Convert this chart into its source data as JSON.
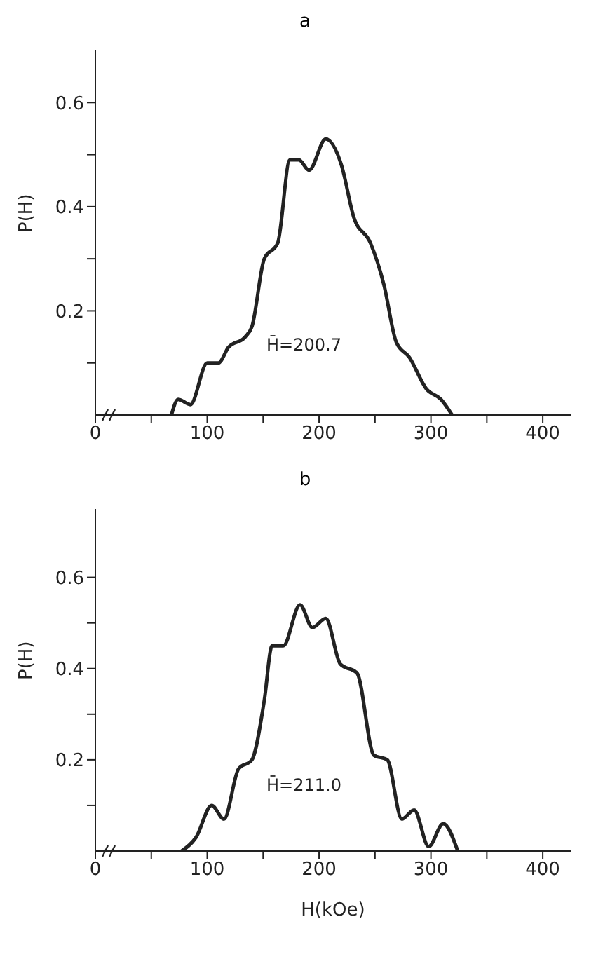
{
  "chart_data": [
    {
      "type": "line",
      "title": "a",
      "ylabel": "P(H)",
      "annotations": [
        "H̄=200.7"
      ],
      "xlim": [
        0,
        425
      ],
      "ylim": [
        0,
        0.7
      ],
      "xticks": [
        0,
        {
          "value": 50,
          "label": null
        },
        100,
        {
          "value": 150,
          "label": null
        },
        200,
        {
          "value": 250,
          "label": null
        },
        300,
        {
          "value": 350,
          "label": null
        },
        400
      ],
      "yticks": [
        {
          "value": 0.1,
          "label": null
        },
        0.2,
        {
          "value": 0.3,
          "label": null
        },
        0.4,
        {
          "value": 0.5,
          "label": null
        },
        0.6
      ],
      "series": [
        {
          "color": "#222222",
          "x": [
            68,
            74,
            85,
            100,
            110,
            119,
            134,
            140,
            151,
            163,
            174,
            182,
            191,
            206,
            220,
            231,
            246,
            258,
            269,
            281,
            296,
            309,
            319
          ],
          "values": [
            0,
            0.03,
            0.02,
            0.1,
            0.1,
            0.13,
            0.15,
            0.17,
            0.3,
            0.33,
            0.49,
            0.49,
            0.47,
            0.53,
            0.48,
            0.38,
            0.33,
            0.25,
            0.14,
            0.11,
            0.05,
            0.03,
            0
          ]
        }
      ]
    },
    {
      "type": "line",
      "title": "b",
      "xlabel": "H(kOe)",
      "ylabel": "P(H)",
      "annotations": [
        "H̄=211.0"
      ],
      "xlim": [
        0,
        425
      ],
      "ylim": [
        0,
        0.75
      ],
      "xticks": [
        0,
        {
          "value": 50,
          "label": null
        },
        100,
        {
          "value": 150,
          "label": null
        },
        200,
        {
          "value": 250,
          "label": null
        },
        300,
        {
          "value": 350,
          "label": null
        },
        400
      ],
      "yticks": [
        {
          "value": 0.1,
          "label": null
        },
        0.2,
        {
          "value": 0.3,
          "label": null
        },
        0.4,
        {
          "value": 0.5,
          "label": null
        },
        0.6
      ],
      "series": [
        {
          "color": "#222222",
          "x": [
            77,
            90,
            104,
            115,
            128,
            140,
            151,
            158,
            168,
            183,
            194,
            206,
            219,
            234,
            249,
            261,
            274,
            285,
            298,
            311,
            324
          ],
          "values": [
            0,
            0.03,
            0.1,
            0.07,
            0.18,
            0.2,
            0.33,
            0.45,
            0.45,
            0.54,
            0.49,
            0.51,
            0.41,
            0.39,
            0.21,
            0.2,
            0.07,
            0.09,
            0.01,
            0.06,
            0
          ]
        }
      ]
    }
  ]
}
